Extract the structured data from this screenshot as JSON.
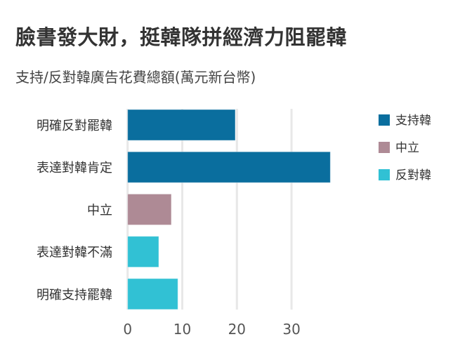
{
  "title": "臉書發大財，挺韓隊拼經濟力阻罷韓",
  "subtitle": "支持/反對韓廣告花費總額(萬元新台幣)",
  "chart_data": {
    "type": "bar",
    "orientation": "horizontal",
    "categories": [
      "明確反對罷韓",
      "表達對韓肯定",
      "中立",
      "表達對韓不滿",
      "明確支持罷韓"
    ],
    "values": [
      19.7,
      37.1,
      8.0,
      5.7,
      9.2
    ],
    "category_groups": [
      "支持韓",
      "支持韓",
      "中立",
      "反對韓",
      "反對韓"
    ],
    "xlim": [
      0,
      38
    ],
    "xticks": [
      0,
      10,
      20,
      30
    ],
    "grid": true,
    "legend_position": "right",
    "legend": [
      {
        "name": "支持韓",
        "color": "#0a6e9e"
      },
      {
        "name": "中立",
        "color": "#ae8a95"
      },
      {
        "name": "反對韓",
        "color": "#31c1d4"
      }
    ]
  }
}
